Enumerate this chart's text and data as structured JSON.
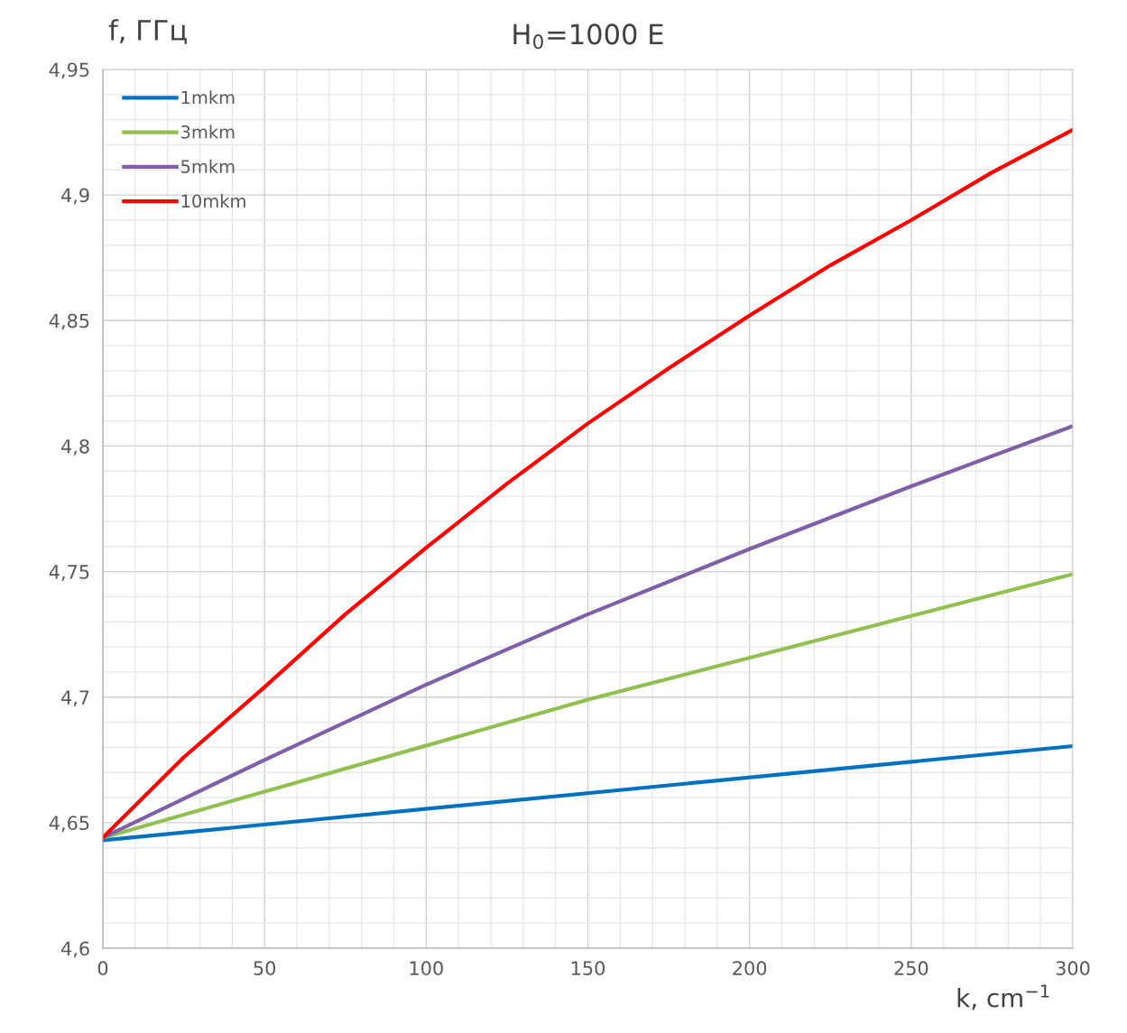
{
  "chart_data": {
    "type": "line",
    "title": "H$_{0}$=1000 E",
    "xlabel": "k, cm$^{−1}$",
    "ylabel": "f, ГГц",
    "x": [
      0,
      25,
      50,
      75,
      100,
      125,
      150,
      175,
      200,
      225,
      250,
      275,
      300
    ],
    "series": [
      {
        "name": "1mkm",
        "color": "#0070c0",
        "x": [
          0,
          300
        ],
        "values": [
          4.643,
          4.6805
        ]
      },
      {
        "name": "3mkm",
        "color": "#92c050",
        "x": [
          0,
          150,
          300
        ],
        "values": [
          4.644,
          4.699,
          4.749
        ]
      },
      {
        "name": "5mkm",
        "color": "#7f60a8",
        "x": [
          0,
          50,
          100,
          150,
          200,
          250,
          300
        ],
        "values": [
          4.644,
          4.675,
          4.705,
          4.733,
          4.759,
          4.784,
          4.808
        ]
      },
      {
        "name": "10mkm",
        "color": "#ff0000",
        "values": [
          4.644,
          4.676,
          4.704,
          4.733,
          4.7595,
          4.785,
          4.809,
          4.831,
          4.852,
          4.872,
          4.89,
          4.909,
          4.926
        ]
      }
    ],
    "xlim": [
      0,
      300
    ],
    "xticks": [
      0,
      50,
      100,
      150,
      200,
      250,
      300
    ],
    "ylim": [
      4.6,
      4.95
    ],
    "yticks": [
      {
        "value": 4.6,
        "label": "4,6"
      },
      {
        "value": 4.65,
        "label": "4,65"
      },
      {
        "value": 4.7,
        "label": "4,7"
      },
      {
        "value": 4.75,
        "label": "4,75"
      },
      {
        "value": 4.8,
        "label": "4,8"
      },
      {
        "value": 4.85,
        "label": "4,85"
      },
      {
        "value": 4.9,
        "label": "4,9"
      },
      {
        "value": 4.95,
        "label": "4,95"
      }
    ],
    "grid": true,
    "legend": "top left",
    "marker": "none",
    "line_style": "solid"
  }
}
